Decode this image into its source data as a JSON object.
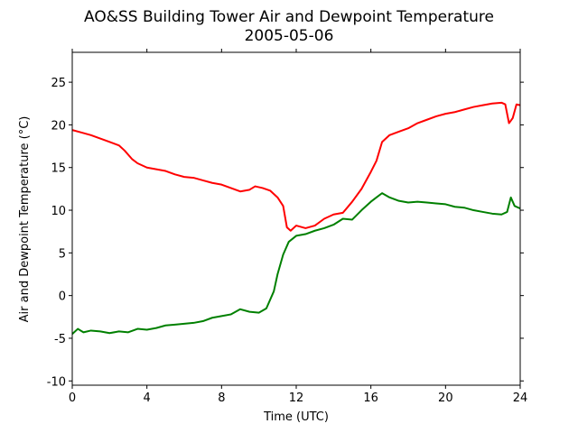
{
  "chart_data": {
    "type": "line",
    "title": "AO&SS Building Tower Air and Dewpoint Temperature",
    "subtitle": "2005-05-06",
    "xlabel": "Time (UTC)",
    "ylabel": "Air and Dewpoint Temperature (°C)",
    "xlim": [
      0,
      24
    ],
    "ylim": [
      -10.5,
      28.5
    ],
    "xticks": [
      0,
      4,
      8,
      12,
      16,
      20,
      24
    ],
    "yticks": [
      -10,
      -5,
      0,
      5,
      10,
      15,
      20,
      25
    ],
    "grid": false,
    "series": [
      {
        "color": "#ff0000",
        "x": [
          0,
          0.5,
          1,
          1.5,
          2,
          2.5,
          2.8,
          3.2,
          3.5,
          4,
          4.5,
          5,
          5.5,
          6,
          6.5,
          7,
          7.5,
          8,
          8.5,
          9,
          9.5,
          9.8,
          10.2,
          10.6,
          11,
          11.3,
          11.5,
          11.7,
          12,
          12.5,
          13,
          13.5,
          14,
          14.5,
          15,
          15.5,
          16,
          16.3,
          16.6,
          17,
          17.5,
          18,
          18.5,
          19,
          19.5,
          20,
          20.5,
          21,
          21.5,
          22,
          22.5,
          23,
          23.2,
          23.4,
          23.6,
          23.8,
          24
        ],
        "values": [
          19.4,
          19.1,
          18.8,
          18.4,
          18.0,
          17.6,
          17.0,
          16.0,
          15.5,
          15.0,
          14.8,
          14.6,
          14.2,
          13.9,
          13.8,
          13.5,
          13.2,
          13.0,
          12.6,
          12.2,
          12.4,
          12.8,
          12.6,
          12.3,
          11.5,
          10.5,
          8.0,
          7.6,
          8.2,
          7.9,
          8.2,
          9.0,
          9.5,
          9.7,
          11.0,
          12.5,
          14.5,
          15.8,
          18.0,
          18.8,
          19.2,
          19.6,
          20.2,
          20.6,
          21.0,
          21.3,
          21.5,
          21.8,
          22.1,
          22.3,
          22.5,
          22.6,
          22.4,
          20.2,
          20.8,
          22.4,
          22.3
        ]
      },
      {
        "color": "#008000",
        "x": [
          0,
          0.3,
          0.6,
          1,
          1.5,
          2,
          2.5,
          3,
          3.5,
          4,
          4.5,
          5,
          5.5,
          6,
          6.5,
          7,
          7.5,
          8,
          8.5,
          9,
          9.5,
          10,
          10.4,
          10.8,
          11,
          11.3,
          11.6,
          12,
          12.5,
          13,
          13.5,
          14,
          14.5,
          15,
          15.5,
          16,
          16.3,
          16.6,
          17,
          17.5,
          18,
          18.5,
          19,
          19.5,
          20,
          20.5,
          21,
          21.5,
          22,
          22.5,
          23,
          23.3,
          23.5,
          23.7,
          24
        ],
        "values": [
          -4.5,
          -3.9,
          -4.3,
          -4.1,
          -4.2,
          -4.4,
          -4.2,
          -4.3,
          -3.9,
          -4.0,
          -3.8,
          -3.5,
          -3.4,
          -3.3,
          -3.2,
          -3.0,
          -2.6,
          -2.4,
          -2.2,
          -1.6,
          -1.9,
          -2.0,
          -1.5,
          0.5,
          2.5,
          4.8,
          6.3,
          7.0,
          7.2,
          7.6,
          7.9,
          8.3,
          9.0,
          8.9,
          10.0,
          11.0,
          11.5,
          12.0,
          11.5,
          11.1,
          10.9,
          11.0,
          10.9,
          10.8,
          10.7,
          10.4,
          10.3,
          10.0,
          9.8,
          9.6,
          9.5,
          9.8,
          11.5,
          10.5,
          10.2
        ]
      }
    ]
  }
}
